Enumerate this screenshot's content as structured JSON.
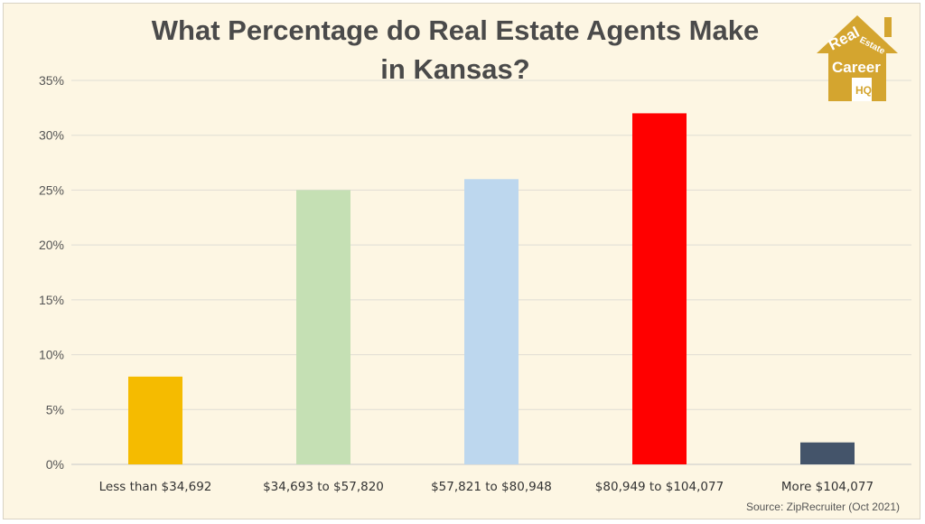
{
  "chart_data": {
    "type": "bar",
    "title": "What Percentage do Real Estate Agents Make in Kansas?",
    "title_lines": [
      "What Percentage do Real Estate Agents Make",
      "in Kansas?"
    ],
    "categories": [
      "Less than $34,692",
      "$34,693 to $57,820",
      "$57,821 to $80,948",
      "$80,949 to $104,077",
      "More $104,077"
    ],
    "values": [
      8,
      25,
      26,
      32,
      2
    ],
    "colors": [
      "#f5bb00",
      "#c5e0b4",
      "#bdd7ee",
      "#ff0000",
      "#44546a"
    ],
    "ylim": [
      0,
      35
    ],
    "yticks": [
      0,
      5,
      10,
      15,
      20,
      25,
      30,
      35
    ],
    "ytick_labels": [
      "0%",
      "5%",
      "10%",
      "15%",
      "20%",
      "25%",
      "30%",
      "35%"
    ],
    "grid": true,
    "legend": "none",
    "xlabel": "",
    "ylabel": ""
  },
  "source": "Source: ZipRecruiter (Oct  2021)",
  "logo": {
    "text_lines": [
      "Real",
      "Estate",
      "Career",
      "HQ"
    ],
    "color": "#d4a52f"
  }
}
